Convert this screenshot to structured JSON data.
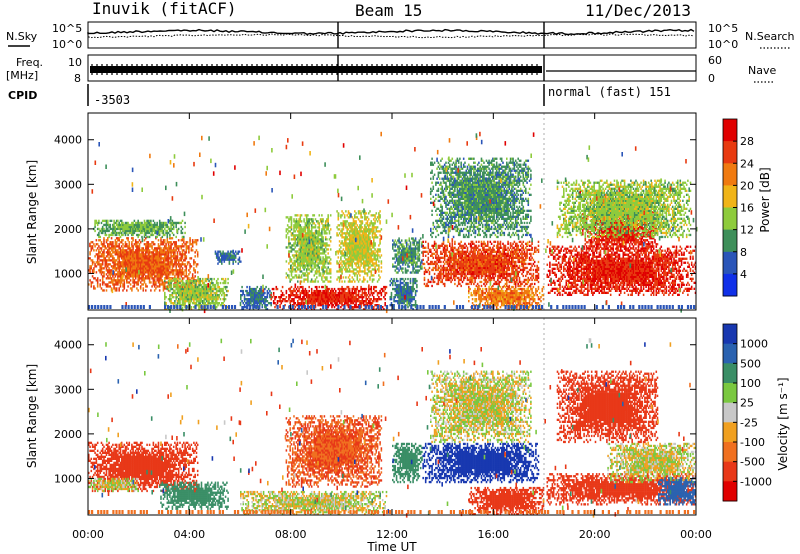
{
  "header": {
    "station": "Inuvik (fitACF)",
    "beam": "Beam 15",
    "date": "11/Dec/2013"
  },
  "params": {
    "nsky_label": "N.Sky",
    "nsearch_label": "N.Search",
    "freq_label": "Freq.",
    "freq_unit": "[MHz]",
    "nave_label": "Nave",
    "cpid_label": "CPID",
    "noise_ticks": [
      "10^5",
      "10^0"
    ],
    "noise_ticks_right": [
      "10^5",
      "10^0"
    ],
    "freq_ticks": [
      "10",
      "8"
    ],
    "nave_ticks": [
      "60",
      "0"
    ],
    "cpid_segments": [
      {
        "start_hour": 0,
        "end_hour": 18.0,
        "label": "-3503"
      },
      {
        "start_hour": 18.0,
        "end_hour": 24,
        "label": "normal (fast) 151"
      }
    ]
  },
  "colors": {
    "power_scale": [
      "#1030e8",
      "#2a55b8",
      "#3e8f5a",
      "#8ecb3c",
      "#f0b418",
      "#f07a10",
      "#e83a10",
      "#e00000"
    ],
    "velocity_scale": [
      "#1838b0",
      "#2a62b0",
      "#3a8e66",
      "#7ac840",
      "#c8c8c8",
      "#f0a020",
      "#f07020",
      "#e83818",
      "#e00000"
    ]
  },
  "chart_data": [
    {
      "type": "heatmap",
      "name": "power",
      "xlabel": "Time UT",
      "ylabel": "Slant Range [km]",
      "xlim": [
        0,
        24
      ],
      "ylim": [
        180,
        4600
      ],
      "x_ticks": [
        "00:00",
        "04:00",
        "08:00",
        "12:00",
        "16:00",
        "20:00",
        "00:00"
      ],
      "y_ticks": [
        1000,
        2000,
        3000,
        4000
      ],
      "colorbar": {
        "label": "Power [dB]",
        "ticks": [
          4,
          8,
          12,
          16,
          20,
          24,
          28
        ],
        "range": [
          0,
          30
        ]
      },
      "regions": [
        {
          "t0": 0.0,
          "t1": 4.3,
          "r0": 600,
          "r1": 1800,
          "level": 24
        },
        {
          "t0": 0.2,
          "t1": 3.8,
          "r0": 1800,
          "r1": 2200,
          "level": 12
        },
        {
          "t0": 3.0,
          "t1": 5.5,
          "r0": 180,
          "r1": 900,
          "level": 14
        },
        {
          "t0": 5.0,
          "t1": 6.0,
          "r0": 1200,
          "r1": 1500,
          "level": 8
        },
        {
          "t0": 6.0,
          "t1": 7.2,
          "r0": 180,
          "r1": 700,
          "level": 8
        },
        {
          "t0": 7.2,
          "t1": 11.8,
          "r0": 180,
          "r1": 700,
          "level": 28
        },
        {
          "t0": 7.8,
          "t1": 9.6,
          "r0": 800,
          "r1": 2300,
          "level": 14
        },
        {
          "t0": 9.8,
          "t1": 11.6,
          "r0": 800,
          "r1": 2400,
          "level": 16
        },
        {
          "t0": 11.9,
          "t1": 13.0,
          "r0": 180,
          "r1": 900,
          "level": 8
        },
        {
          "t0": 12.0,
          "t1": 13.2,
          "r0": 1000,
          "r1": 1800,
          "level": 10
        },
        {
          "t0": 13.2,
          "t1": 17.8,
          "r0": 700,
          "r1": 1700,
          "level": 26
        },
        {
          "t0": 13.5,
          "t1": 17.5,
          "r0": 1800,
          "r1": 3600,
          "level": 10
        },
        {
          "t0": 15.0,
          "t1": 18.0,
          "r0": 180,
          "r1": 700,
          "level": 22
        },
        {
          "t0": 18.1,
          "t1": 24.0,
          "r0": 500,
          "r1": 1600,
          "level": 28
        },
        {
          "t0": 19.5,
          "t1": 22.5,
          "r0": 1500,
          "r1": 2400,
          "level": 28
        },
        {
          "t0": 18.5,
          "t1": 23.8,
          "r0": 1800,
          "r1": 3100,
          "level": 14
        }
      ]
    },
    {
      "type": "heatmap",
      "name": "velocity",
      "xlabel": "Time UT",
      "ylabel": "Slant Range [km]",
      "xlim": [
        0,
        24
      ],
      "ylim": [
        180,
        4600
      ],
      "x_ticks": [
        "00:00",
        "04:00",
        "08:00",
        "12:00",
        "16:00",
        "20:00",
        "00:00"
      ],
      "y_ticks": [
        1000,
        2000,
        3000,
        4000
      ],
      "colorbar": {
        "label": "Velocity [m s⁻¹]",
        "ticks": [
          "1000",
          "500",
          "100",
          "25",
          "-25",
          "-100",
          "-500",
          "-1000"
        ]
      },
      "regions": [
        {
          "t0": 0.0,
          "t1": 4.3,
          "r0": 700,
          "r1": 1800,
          "level": -500
        },
        {
          "t0": 0.0,
          "t1": 2.0,
          "r0": 700,
          "r1": 1000,
          "level": 0
        },
        {
          "t0": 2.8,
          "t1": 5.5,
          "r0": 300,
          "r1": 900,
          "level": 200
        },
        {
          "t0": 6.0,
          "t1": 11.8,
          "r0": 180,
          "r1": 700,
          "level": 0
        },
        {
          "t0": 7.8,
          "t1": 11.6,
          "r0": 800,
          "r1": 2400,
          "level": -300
        },
        {
          "t0": 12.0,
          "t1": 13.2,
          "r0": 900,
          "r1": 1800,
          "level": 150
        },
        {
          "t0": 13.2,
          "t1": 17.8,
          "r0": 900,
          "r1": 1800,
          "level": 900
        },
        {
          "t0": 13.5,
          "t1": 17.5,
          "r0": 1800,
          "r1": 3400,
          "level": 0
        },
        {
          "t0": 15.0,
          "t1": 18.0,
          "r0": 180,
          "r1": 800,
          "level": -500
        },
        {
          "t0": 18.1,
          "t1": 24.0,
          "r0": 400,
          "r1": 1100,
          "level": -500
        },
        {
          "t0": 20.5,
          "t1": 24.0,
          "r0": 900,
          "r1": 1800,
          "level": 0
        },
        {
          "t0": 18.5,
          "t1": 22.5,
          "r0": 1800,
          "r1": 3400,
          "level": -500
        },
        {
          "t0": 22.5,
          "t1": 24.0,
          "r0": 400,
          "r1": 1000,
          "level": 500
        }
      ]
    }
  ]
}
